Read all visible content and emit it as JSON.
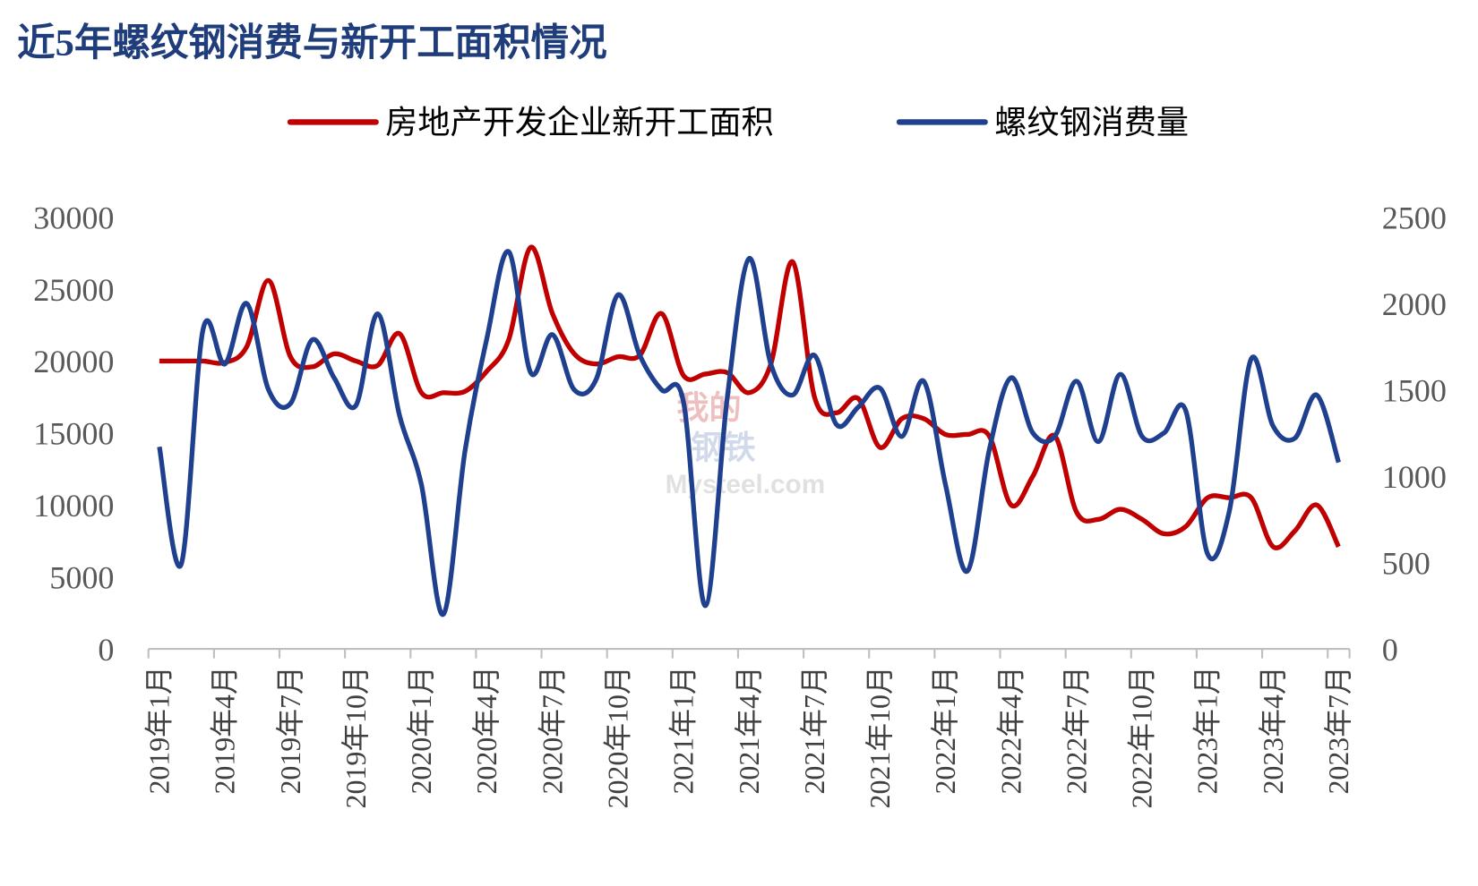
{
  "chart_data": {
    "type": "line",
    "title": "近5年螺纹钢消费与新开工面积情况",
    "watermark": [
      "我的",
      "钢铁",
      "Mysteel.com"
    ],
    "categories": [
      "2019年1月",
      null,
      null,
      "2019年4月",
      null,
      null,
      "2019年7月",
      null,
      null,
      "2019年10月",
      null,
      null,
      "2020年1月",
      null,
      null,
      "2020年4月",
      null,
      null,
      "2020年7月",
      null,
      null,
      "2020年10月",
      null,
      null,
      "2021年1月",
      null,
      null,
      "2021年4月",
      null,
      null,
      "2021年7月",
      null,
      null,
      "2021年10月",
      null,
      null,
      "2022年1月",
      null,
      null,
      "2022年4月",
      null,
      null,
      "2022年7月",
      null,
      null,
      "2022年10月",
      null,
      null,
      "2023年1月",
      null,
      null,
      "2023年4月",
      null,
      null,
      "2023年7月"
    ],
    "series": [
      {
        "name": "房地产开发企业新开工面积",
        "color": "#c00000",
        "axis": "y",
        "values": [
          20000,
          20000,
          20000,
          19900,
          21000,
          25600,
          20300,
          19600,
          20500,
          20000,
          19700,
          21900,
          17800,
          17800,
          17900,
          19300,
          21500,
          27900,
          23300,
          20500,
          19800,
          20300,
          20400,
          23300,
          19000,
          19100,
          19200,
          17800,
          19800,
          26900,
          17500,
          16400,
          17400,
          14000,
          16000,
          16000,
          14900,
          14900,
          14800,
          10000,
          12000,
          14800,
          9500,
          9000,
          9700,
          9000,
          8000,
          8500,
          10500,
          10500,
          10500,
          7100,
          8200,
          10000,
          7100
        ]
      },
      {
        "name": "螺纹钢消费量",
        "color": "#1f3f8f",
        "axis": "y2",
        "values": [
          1170,
          490,
          1850,
          1650,
          2000,
          1500,
          1420,
          1790,
          1570,
          1410,
          1940,
          1350,
          950,
          200,
          1150,
          1800,
          2300,
          1600,
          1820,
          1500,
          1560,
          2050,
          1700,
          1500,
          1430,
          250,
          1450,
          2260,
          1650,
          1470,
          1700,
          1300,
          1400,
          1510,
          1230,
          1550,
          950,
          450,
          1150,
          1570,
          1250,
          1230,
          1550,
          1200,
          1590,
          1230,
          1250,
          1380,
          550,
          800,
          1680,
          1290,
          1220,
          1470,
          1080
        ]
      }
    ],
    "ylim": [
      0,
      30000
    ],
    "yticks": [
      0,
      5000,
      10000,
      15000,
      20000,
      25000,
      30000
    ],
    "y2lim": [
      0,
      2500
    ],
    "y2ticks": [
      0,
      500,
      1000,
      1500,
      2000,
      2500
    ],
    "legend": "top",
    "grid": false
  }
}
